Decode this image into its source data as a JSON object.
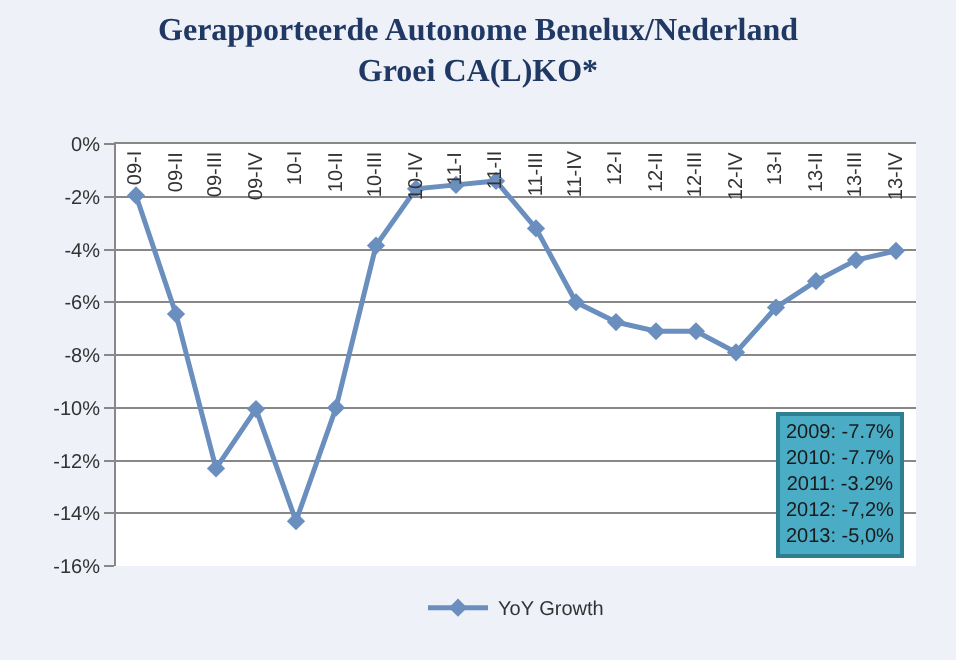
{
  "chart_data": {
    "type": "line",
    "title": "Gerapporteerde Autonome Benelux/Nederland Groei CA(L)KO*",
    "categories": [
      "09-I",
      "09-II",
      "09-III",
      "09-IV",
      "10-I",
      "10-II",
      "10-III",
      "10-IV",
      "11-I",
      "11-II",
      "11-III",
      "11-IV",
      "12-I",
      "12-II",
      "12-III",
      "12-IV",
      "13-I",
      "13-II",
      "13-III",
      "13-IV"
    ],
    "series": [
      {
        "name": "YoY Growth",
        "color": "#6a8fbf",
        "values": [
          -1.95,
          -6.45,
          -12.3,
          -10.05,
          -14.3,
          -10.0,
          -3.85,
          -1.7,
          -1.55,
          -1.4,
          -3.2,
          -6.0,
          -6.75,
          -7.1,
          -7.1,
          -7.9,
          -6.2,
          -5.2,
          -4.4,
          -4.05
        ]
      }
    ],
    "ylim": [
      -16,
      0
    ],
    "yticks": [
      {
        "value": -16,
        "label": "-16%"
      },
      {
        "value": -14,
        "label": "-14%"
      },
      {
        "value": -12,
        "label": "-12%"
      },
      {
        "value": -10,
        "label": "-10%"
      },
      {
        "value": -8,
        "label": "-8%"
      },
      {
        "value": -6,
        "label": "-6%"
      },
      {
        "value": -4,
        "label": "-4%"
      },
      {
        "value": -2,
        "label": "-2%"
      },
      {
        "value": 0,
        "label": "0%"
      }
    ],
    "annotations": [
      "2009: -7.7%",
      "2010: -7.7%",
      "2011: -3.2%",
      "2012: -7,2%",
      "2013: -5,0%"
    ],
    "grid": "y",
    "legend": "bottom",
    "marker": "diamond",
    "line_style": "solid"
  }
}
